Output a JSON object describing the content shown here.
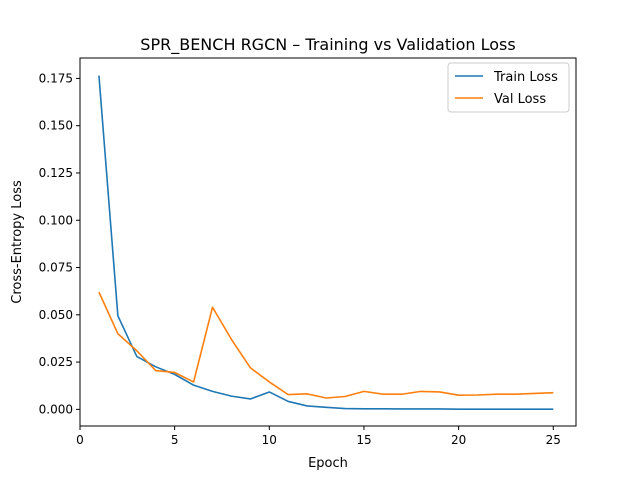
{
  "chart_data": {
    "type": "line",
    "title": "SPR_BENCH RGCN – Training vs Validation Loss",
    "xlabel": "Epoch",
    "ylabel": "Cross-Entropy Loss",
    "xlim": [
      0.0,
      26.2
    ],
    "ylim": [
      -0.0088,
      0.1858
    ],
    "xticks": [
      0,
      5,
      10,
      15,
      20,
      25
    ],
    "xtick_labels": [
      "0",
      "5",
      "10",
      "15",
      "20",
      "25"
    ],
    "yticks": [
      0.0,
      0.025,
      0.05,
      0.075,
      0.1,
      0.125,
      0.15,
      0.175
    ],
    "ytick_labels": [
      "0.000",
      "0.025",
      "0.050",
      "0.075",
      "0.100",
      "0.125",
      "0.150",
      "0.175"
    ],
    "grid": false,
    "legend_position": "top-right",
    "x": [
      1,
      2,
      3,
      4,
      5,
      6,
      7,
      8,
      9,
      10,
      11,
      12,
      13,
      14,
      15,
      16,
      17,
      18,
      19,
      20,
      21,
      22,
      23,
      24,
      25
    ],
    "series": [
      {
        "name": "Train Loss",
        "color": "#1f77b4",
        "values": [
          0.1765,
          0.0495,
          0.028,
          0.0225,
          0.0185,
          0.0128,
          0.0095,
          0.007,
          0.0055,
          0.0092,
          0.0042,
          0.0018,
          0.0011,
          0.0004,
          0.0003,
          0.0003,
          0.0002,
          0.0002,
          0.0002,
          0.0001,
          0.0001,
          0.0001,
          0.0001,
          0.0001,
          0.0001
        ]
      },
      {
        "name": "Val Loss",
        "color": "#ff7f0e",
        "values": [
          0.062,
          0.04,
          0.031,
          0.0205,
          0.0195,
          0.0145,
          0.054,
          0.037,
          0.022,
          0.0145,
          0.0078,
          0.0082,
          0.006,
          0.0068,
          0.0095,
          0.008,
          0.008,
          0.0095,
          0.0092,
          0.0075,
          0.0076,
          0.008,
          0.008,
          0.0084,
          0.0088
        ]
      }
    ]
  }
}
